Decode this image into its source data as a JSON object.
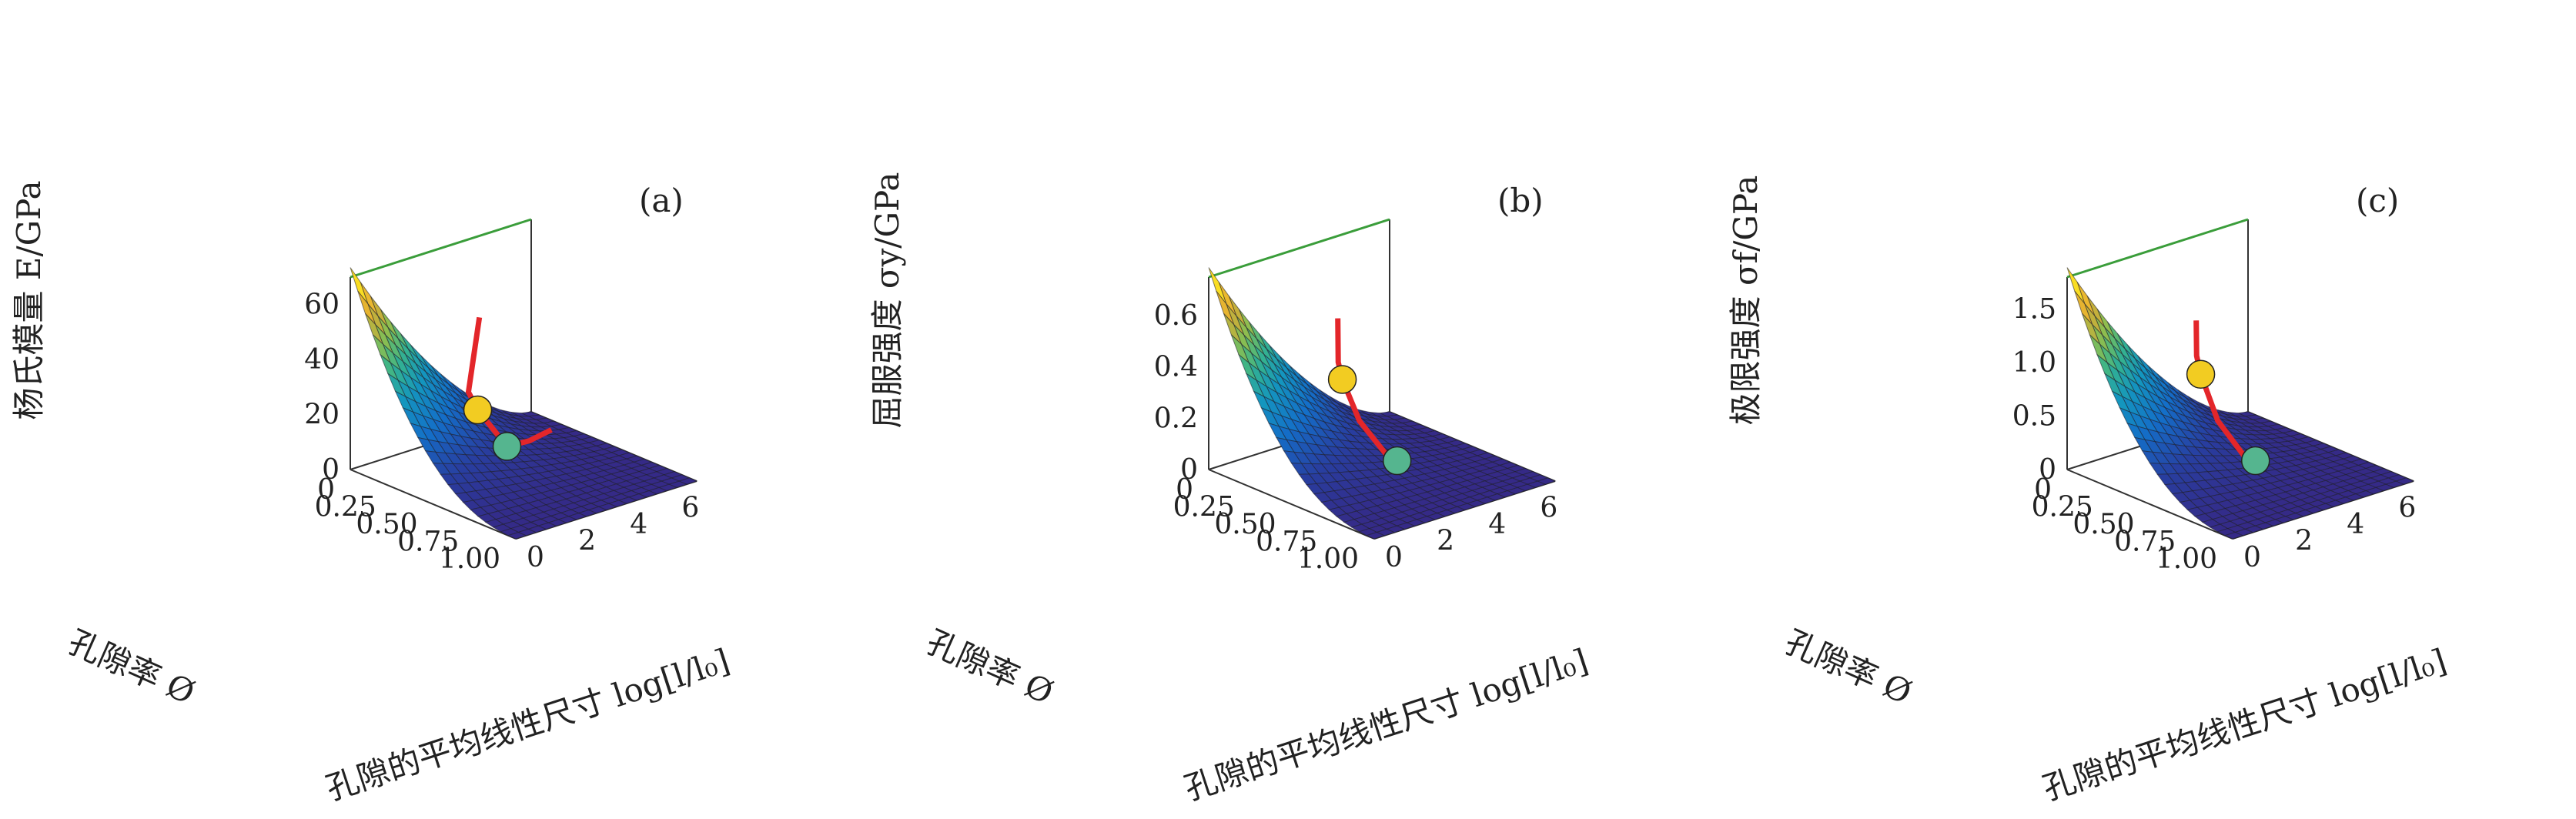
{
  "chart_data": [
    {
      "type": "surface3d",
      "panel_label": "(a)",
      "zlabel": "杨氏模量 E/GPa",
      "xlabel": "孔隙率 Ø",
      "ylabel": "孔隙的平均线性尺寸 log[l/l₀]",
      "z_ticks": [
        "0",
        "20",
        "40",
        "60"
      ],
      "x_ticks": [
        "0",
        "0.25",
        "0.50",
        "0.75",
        "1.00"
      ],
      "y_ticks": [
        "0",
        "2",
        "4",
        "6"
      ],
      "zlim": [
        0,
        70
      ],
      "xlim": [
        0,
        1
      ],
      "ylim": [
        0,
        7
      ],
      "surface_max": 70,
      "path_points": [
        {
          "porosity": 0.78,
          "log_size": 0.0,
          "value": 75
        },
        {
          "porosity": 0.62,
          "log_size": 0.6,
          "value": 42
        },
        {
          "porosity": 0.52,
          "log_size": 1.6,
          "value": 30
        },
        {
          "porosity": 0.4,
          "log_size": 3.5,
          "value": 8
        },
        {
          "porosity": 0.3,
          "log_size": 5.0,
          "value": 3
        },
        {
          "porosity": 0.2,
          "log_size": 6.5,
          "value": 0
        }
      ],
      "markers": [
        {
          "porosity": 0.52,
          "log_size": 1.6,
          "value": 30,
          "color": "#f2cc22"
        },
        {
          "porosity": 0.4,
          "log_size": 3.5,
          "value": 8,
          "color": "#55b58f"
        }
      ]
    },
    {
      "type": "surface3d",
      "panel_label": "(b)",
      "zlabel": "屈服强度 σy/GPa",
      "xlabel": "孔隙率 Ø",
      "ylabel": "孔隙的平均线性尺寸 log[l/l₀]",
      "z_ticks": [
        "0",
        "0.2",
        "0.4",
        "0.6"
      ],
      "x_ticks": [
        "0",
        "0.25",
        "0.50",
        "0.75",
        "1.00"
      ],
      "y_ticks": [
        "0",
        "2",
        "4",
        "6"
      ],
      "zlim": [
        0,
        0.75
      ],
      "xlim": [
        0,
        1
      ],
      "ylim": [
        0,
        7
      ],
      "surface_max": 0.75,
      "path_points": [
        {
          "porosity": 0.78,
          "log_size": 0.0,
          "value": 0.8
        },
        {
          "porosity": 0.72,
          "log_size": 0.4,
          "value": 0.6
        },
        {
          "porosity": 0.62,
          "log_size": 1.2,
          "value": 0.48
        },
        {
          "porosity": 0.52,
          "log_size": 2.5,
          "value": 0.25
        },
        {
          "porosity": 0.45,
          "log_size": 4.0,
          "value": 0.05
        },
        {
          "porosity": 0.42,
          "log_size": 4.6,
          "value": 0
        }
      ],
      "markers": [
        {
          "porosity": 0.62,
          "log_size": 1.2,
          "value": 0.48,
          "color": "#f2cc22"
        },
        {
          "porosity": 0.42,
          "log_size": 4.6,
          "value": 0,
          "color": "#55b58f"
        }
      ]
    },
    {
      "type": "surface3d",
      "panel_label": "(c)",
      "zlabel": "极限强度 σf/GPa",
      "xlabel": "孔隙率 Ø",
      "ylabel": "孔隙的平均线性尺寸 log[l/l₀]",
      "z_ticks": [
        "0",
        "0.5",
        "1.0",
        "1.5"
      ],
      "x_ticks": [
        "0",
        "0.25",
        "0.50",
        "0.75",
        "1.00"
      ],
      "y_ticks": [
        "0",
        "2",
        "4",
        "6"
      ],
      "zlim": [
        0,
        1.8
      ],
      "xlim": [
        0,
        1
      ],
      "ylim": [
        0,
        7
      ],
      "surface_max": 1.8,
      "path_points": [
        {
          "porosity": 0.78,
          "log_size": 0.0,
          "value": 1.9
        },
        {
          "porosity": 0.72,
          "log_size": 0.4,
          "value": 1.5
        },
        {
          "porosity": 0.62,
          "log_size": 1.2,
          "value": 1.2
        },
        {
          "porosity": 0.52,
          "log_size": 2.5,
          "value": 0.6
        },
        {
          "porosity": 0.45,
          "log_size": 4.0,
          "value": 0.1
        },
        {
          "porosity": 0.42,
          "log_size": 4.6,
          "value": 0
        }
      ],
      "markers": [
        {
          "porosity": 0.62,
          "log_size": 1.2,
          "value": 1.2,
          "color": "#f2cc22"
        },
        {
          "porosity": 0.42,
          "log_size": 4.6,
          "value": 0,
          "color": "#55b58f"
        }
      ]
    }
  ]
}
